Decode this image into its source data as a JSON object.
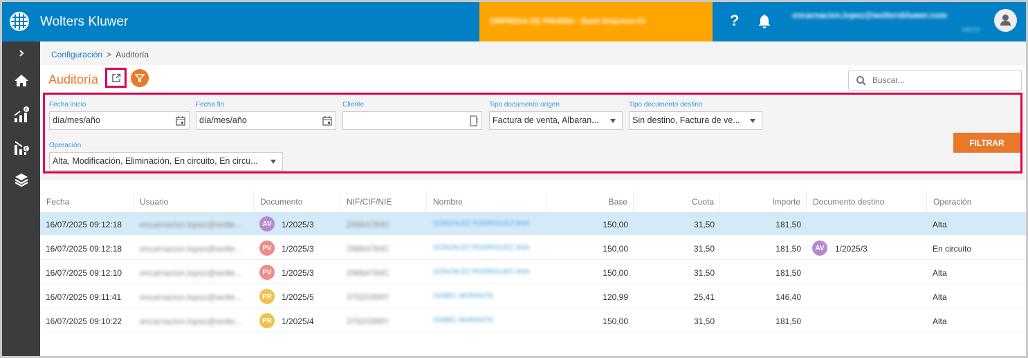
{
  "topbar": {
    "brand": "Wolters Kluwer",
    "company_label": "EMPRESA DE PRUEBA - Banh Empresa 03",
    "help_label": "?",
    "user_email": "encarnacion.lopez@wolterskluwer.com",
    "user_subtitle": "DECO",
    "colors": {
      "bar": "#0180c5",
      "company": "#ffa500"
    }
  },
  "sidebar": {
    "items": [
      {
        "name": "expand",
        "icon": "chevron-right-icon"
      },
      {
        "name": "home",
        "icon": "home-icon"
      },
      {
        "name": "sales",
        "icon": "chart-up-euro-icon"
      },
      {
        "name": "purchases",
        "icon": "chart-down-euro-icon"
      },
      {
        "name": "layers",
        "icon": "layers-icon"
      }
    ]
  },
  "breadcrumb": {
    "items": [
      {
        "label": "Configuración",
        "link": true
      },
      {
        "label": "Auditoría",
        "link": false
      }
    ],
    "separator": ">"
  },
  "page": {
    "title": "Auditoría",
    "accent": "#e8792b"
  },
  "search": {
    "placeholder": "Buscar..."
  },
  "filters": {
    "fecha_inicio": {
      "label": "Fecha inicio",
      "value": "día/mes/año"
    },
    "fecha_fin": {
      "label": "Fecha fin",
      "value": "día/mes/año"
    },
    "cliente": {
      "label": "Cliente",
      "value": ""
    },
    "tipo_origen": {
      "label": "Tipo documento origen",
      "value": "Factura de venta, Albaran..."
    },
    "tipo_destino": {
      "label": "Tipo documento destino",
      "value": "Sin destino, Factura de ve..."
    },
    "operacion": {
      "label": "Operación",
      "value": "Alta, Modificación, Eliminación, En circuito, En circu..."
    },
    "submit_label": "FILTRAR"
  },
  "table": {
    "columns": [
      "Fecha",
      "Usuario",
      "Documento",
      "NIF/CIF/NIE",
      "Nombre",
      "Base",
      "Cuota",
      "Importe",
      "Documento destino",
      "Operación"
    ],
    "rows": [
      {
        "fecha": "16/07/2025 09:12:18",
        "usuario": "encarnacion.lopez@wolte...",
        "doc_badge": "AV",
        "doc_color": "#b58ad0",
        "documento": "1/2025/3",
        "nif": "29864784C",
        "nombre": "GONZALEZ RODRIGUEZ ANA",
        "base": "150,00",
        "cuota": "31,50",
        "importe": "181,50",
        "dest_badge": "",
        "dest_color": "",
        "destino": "",
        "operacion": "Alta",
        "selected": true
      },
      {
        "fecha": "16/07/2025 09:12:18",
        "usuario": "encarnacion.lopez@wolte...",
        "doc_badge": "PV",
        "doc_color": "#ec8c8c",
        "documento": "1/2025/3",
        "nif": "29864784C",
        "nombre": "GONZALEZ RODRIGUEZ ANA",
        "base": "150,00",
        "cuota": "31,50",
        "importe": "181,50",
        "dest_badge": "AV",
        "dest_color": "#b58ad0",
        "destino": "1/2025/3",
        "operacion": "En circuito",
        "selected": false
      },
      {
        "fecha": "16/07/2025 09:12:10",
        "usuario": "encarnacion.lopez@wolte...",
        "doc_badge": "PV",
        "doc_color": "#ec8c8c",
        "documento": "1/2025/3",
        "nif": "29864784C",
        "nombre": "GONZALEZ RODRIGUEZ ANA",
        "base": "150,00",
        "cuota": "31,50",
        "importe": "181,50",
        "dest_badge": "",
        "dest_color": "",
        "destino": "",
        "operacion": "Alta",
        "selected": false
      },
      {
        "fecha": "16/07/2025 09:11:41",
        "usuario": "encarnacion.lopez@wolte...",
        "doc_badge": "PR",
        "doc_color": "#f0c24c",
        "documento": "1/2025/5",
        "nif": "37020399Y",
        "nombre": "ISABEL MORANTE",
        "base": "120,99",
        "cuota": "25,41",
        "importe": "146,40",
        "dest_badge": "",
        "dest_color": "",
        "destino": "",
        "operacion": "Alta",
        "selected": false
      },
      {
        "fecha": "16/07/2025 09:10:22",
        "usuario": "encarnacion.lopez@wolte...",
        "doc_badge": "PR",
        "doc_color": "#f0c24c",
        "documento": "1/2025/4",
        "nif": "37020399Y",
        "nombre": "ISABEL MORANTE",
        "base": "150,00",
        "cuota": "31,50",
        "importe": "181,50",
        "dest_badge": "",
        "dest_color": "",
        "destino": "",
        "operacion": "Alta",
        "selected": false
      }
    ]
  }
}
